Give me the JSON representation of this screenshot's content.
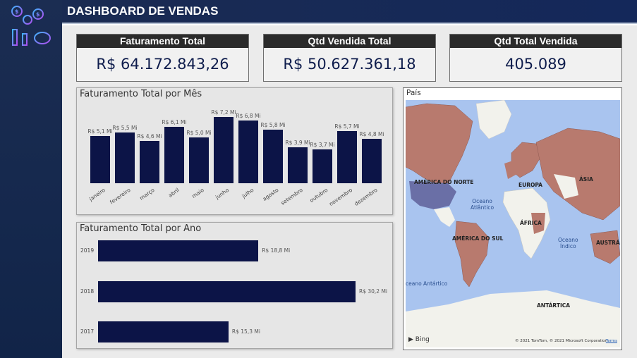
{
  "header": {
    "title": "DASHBOARD DE VENDAS"
  },
  "colors": {
    "bar": "#0c1447",
    "header_bg": "#1a2b52",
    "card_head": "#2b2b2b",
    "map_water": "#a9c4ef",
    "map_land": "#f2f2ec",
    "map_highlight": "#b87a6e"
  },
  "logo": {
    "icon": "money-bags-piggy-bank-icon"
  },
  "kpis": [
    {
      "title": "Faturamento Total",
      "value": "R$ 64.172.843,26"
    },
    {
      "title": "Qtd Vendida Total",
      "value": "R$ 50.627.361,18"
    },
    {
      "title": "Qtd Total Vendida",
      "value": "405.089"
    }
  ],
  "monthly": {
    "title": "Faturamento Total por Mês",
    "chart_data": {
      "type": "bar",
      "categories": [
        "janeiro",
        "fevereiro",
        "março",
        "abril",
        "maio",
        "junho",
        "julho",
        "agosto",
        "setembro",
        "outubro",
        "novembro",
        "dezembro"
      ],
      "values": [
        5.1,
        5.5,
        4.6,
        6.1,
        5.0,
        7.2,
        6.8,
        5.8,
        3.9,
        3.7,
        5.7,
        4.8
      ],
      "labels": [
        "R$ 5,1 Mi",
        "R$ 5,5 Mi",
        "R$ 4,6 Mi",
        "R$ 6,1 Mi",
        "R$ 5,0 Mi",
        "R$ 7,2 Mi",
        "R$ 6,8 Mi",
        "R$ 5,8 Mi",
        "R$ 3,9 Mi",
        "R$ 3,7 Mi",
        "R$ 5,7 Mi",
        "R$ 4,8 Mi"
      ]
    }
  },
  "yearly": {
    "title": "Faturamento Total por Ano",
    "chart_data": {
      "type": "bar",
      "orientation": "horizontal",
      "categories": [
        "2019",
        "2018",
        "2017"
      ],
      "values": [
        18.8,
        30.2,
        15.3
      ],
      "labels": [
        "R$ 18,8 Mi",
        "R$ 30,2 Mi",
        "R$ 15,3 Mi"
      ]
    }
  },
  "map": {
    "title": "País",
    "labels": {
      "north_america": "AMÉRICA DO NORTE",
      "europe": "EUROPA",
      "asia": "ÁSIA",
      "africa": "ÁFRICA",
      "south_america": "AMÉRICA DO SUL",
      "australia": "AUSTRÁL",
      "antarctica": "ANTÁRTICA",
      "atlantic_1": "Oceano",
      "atlantic_2": "Atlântico",
      "indian_1": "Oceano",
      "indian_2": "Índico",
      "antarctic_ocean": "ceano Antártico"
    },
    "attribution": {
      "provider": "Bing",
      "copyright": "© 2021 TomTom, © 2021 Microsoft Corporation",
      "terms": "Terms"
    }
  }
}
